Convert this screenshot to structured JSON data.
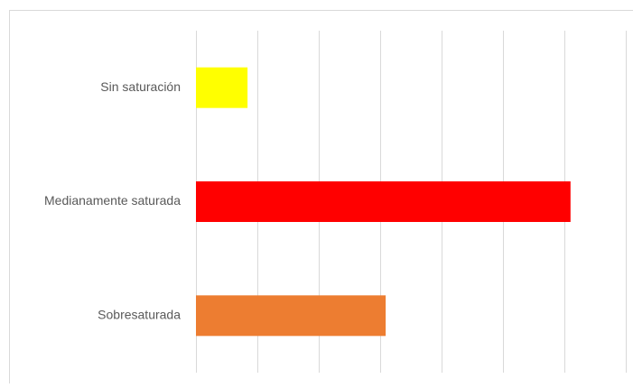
{
  "chart_data": {
    "type": "barh",
    "categories": [
      "Sin saturación",
      "Medianamente saturada",
      "Sobresaturada"
    ],
    "values": [
      0.84,
      6.1,
      3.09
    ],
    "colors": [
      "#ffff00",
      "#ff0000",
      "#ed7d31"
    ],
    "xlim": [
      0,
      7
    ],
    "xticks": [
      0,
      1,
      2,
      3,
      4,
      5,
      6,
      7
    ],
    "grid": true
  }
}
